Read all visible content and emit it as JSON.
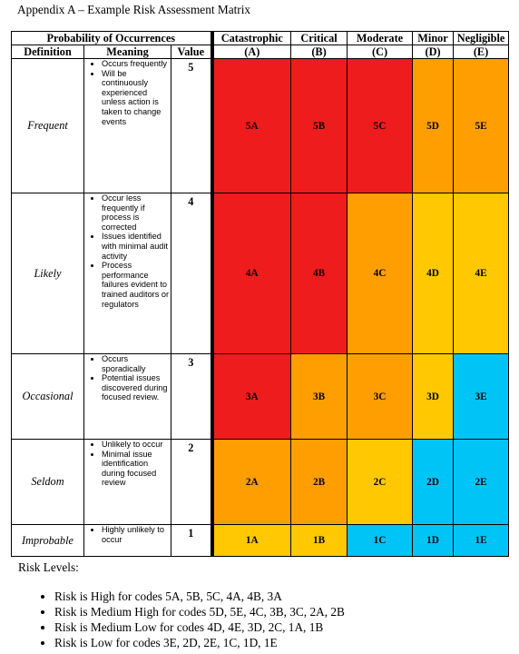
{
  "title": "Appendix A – Example Risk Assessment Matrix",
  "headers": {
    "probability": "Probability of Occurrences",
    "definition": "Definition",
    "meaning": "Meaning",
    "value": "Value",
    "severities": [
      {
        "name": "Catastrophic",
        "letter": "(A)"
      },
      {
        "name": "Critical",
        "letter": "(B)"
      },
      {
        "name": "Moderate",
        "letter": "(C)"
      },
      {
        "name": "Minor",
        "letter": "(D)"
      },
      {
        "name": "Negligible",
        "letter": "(E)"
      }
    ]
  },
  "rows": [
    {
      "definition": "Frequent",
      "value": "5",
      "meaning": [
        "Occurs frequently",
        "Will be continuously experienced unless action is taken to change events"
      ],
      "codes": [
        "5A",
        "5B",
        "5C",
        "5D",
        "5E"
      ]
    },
    {
      "definition": "Likely",
      "value": "4",
      "meaning": [
        "Occur less frequently if process is corrected",
        "Issues identified with minimal audit activity",
        "Process performance failures evident to trained auditors or regulators"
      ],
      "codes": [
        "4A",
        "4B",
        "4C",
        "4D",
        "4E"
      ]
    },
    {
      "definition": "Occasional",
      "value": "3",
      "meaning": [
        "Occurs sporadically",
        "Potential issues discovered during focused review."
      ],
      "codes": [
        "3A",
        "3B",
        "3C",
        "3D",
        "3E"
      ]
    },
    {
      "definition": "Seldom",
      "value": "2",
      "meaning": [
        "Unlikely to occur",
        "Minimal issue identification during focused review"
      ],
      "codes": [
        "2A",
        "2B",
        "2C",
        "2D",
        "2E"
      ]
    },
    {
      "definition": "Improbable",
      "value": "1",
      "meaning": [
        "Highly unlikely to occur"
      ],
      "codes": [
        "1A",
        "1B",
        "1C",
        "1D",
        "1E"
      ]
    }
  ],
  "colors": {
    "high": "#ee1c1c",
    "medium_high": "#ff9e00",
    "medium_low": "#ffc800",
    "low": "#00c4f6"
  },
  "risk_levels_heading": "Risk Levels:",
  "risk_levels": [
    "Risk is High for codes 5A, 5B, 5C, 4A, 4B, 3A",
    "Risk is Medium High for codes 5D, 5E, 4C, 3B, 3C, 2A, 2B",
    "Risk is Medium Low for codes 4D, 4E, 3D, 2C, 1A, 1B",
    "Risk is Low for codes 3E, 2D, 2E, 1C, 1D, 1E"
  ]
}
